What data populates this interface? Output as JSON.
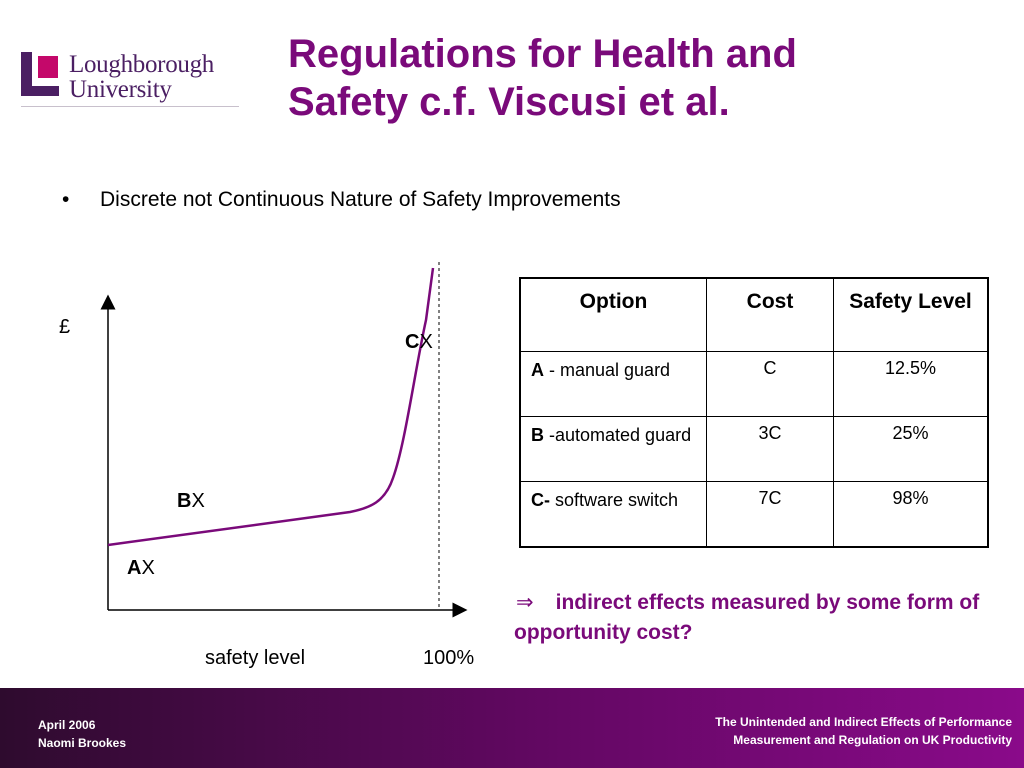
{
  "logo": {
    "line1": "Loughborough",
    "line2": "University",
    "colors": {
      "purple": "#4b1f63",
      "magenta": "#c4086a"
    }
  },
  "title": {
    "line1": "Regulations for Health and",
    "line2": "Safety c.f. Viscusi et al."
  },
  "bullet": {
    "symbol": "•",
    "text": "Discrete not Continuous Nature of Safety Improvements"
  },
  "chart": {
    "y_axis_label": "£",
    "x_axis_label": "safety level",
    "x_end_label": "100%",
    "points": [
      {
        "letter": "A",
        "marker": "X"
      },
      {
        "letter": "B",
        "marker": "X"
      },
      {
        "letter": "C",
        "marker": "X"
      }
    ],
    "curve_color": "#7a0a7a"
  },
  "table": {
    "headers": [
      "Option",
      "Cost",
      "Safety Level"
    ],
    "rows": [
      {
        "option_bold": "A",
        "option_rest": " - manual guard",
        "cost": "C",
        "safety": "12.5%"
      },
      {
        "option_bold": "B",
        "option_rest": " -automated guard",
        "cost": "3C",
        "safety": "25%"
      },
      {
        "option_bold": "C-",
        "option_rest": " software switch",
        "cost": "7C",
        "safety": "98%"
      }
    ]
  },
  "note": {
    "arrow": "⇒",
    "text": "indirect effects measured by some form of opportunity cost?"
  },
  "footer": {
    "left_line1": "April 2006",
    "left_line2": "Naomi Brookes",
    "right_line1": "The Unintended and Indirect Effects of Performance",
    "right_line2": "Measurement and Regulation on UK Productivity"
  }
}
